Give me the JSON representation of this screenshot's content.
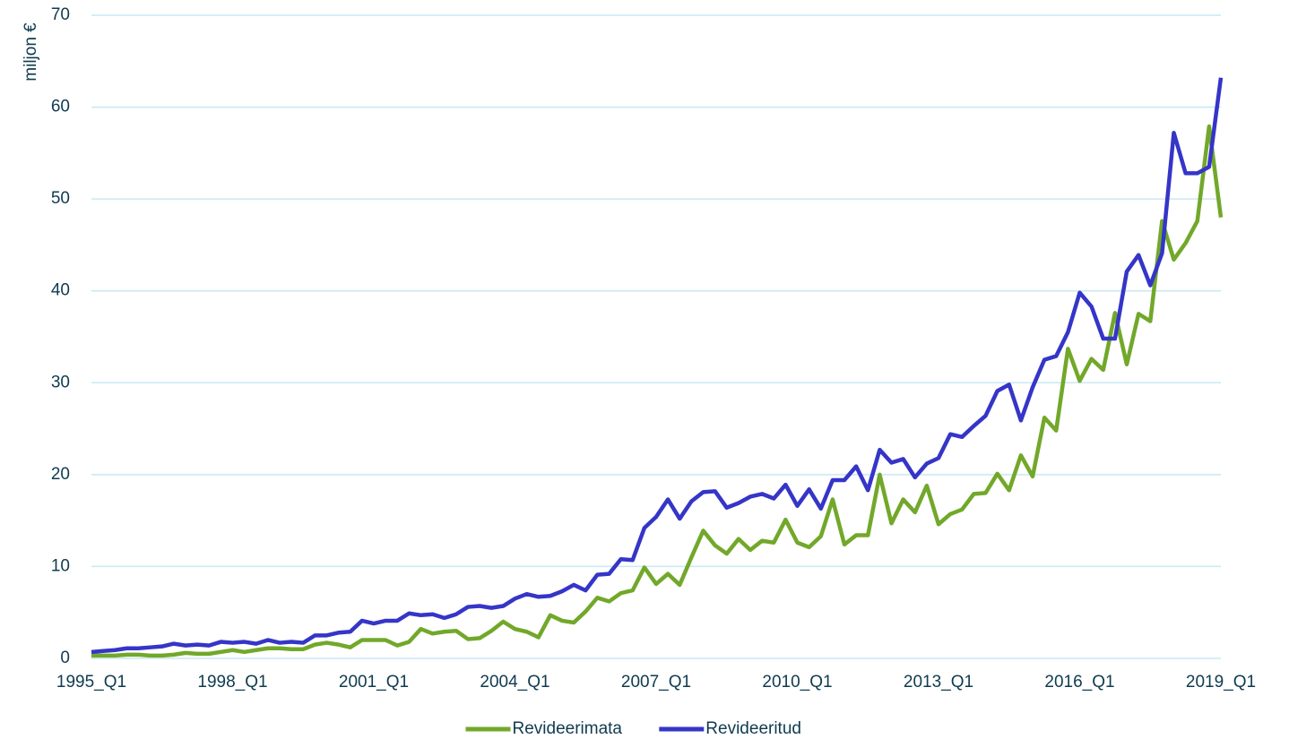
{
  "chart_data": {
    "type": "line",
    "y_label": "miljon €",
    "categories": [
      "1995_Q1",
      null,
      null,
      null,
      null,
      null,
      null,
      null,
      null,
      null,
      null,
      null,
      "1998_Q1",
      null,
      null,
      null,
      null,
      null,
      null,
      null,
      null,
      null,
      null,
      null,
      "2001_Q1",
      null,
      null,
      null,
      null,
      null,
      null,
      null,
      null,
      null,
      null,
      null,
      "2004_Q1",
      null,
      null,
      null,
      null,
      null,
      null,
      null,
      null,
      null,
      null,
      null,
      "2007_Q1",
      null,
      null,
      null,
      null,
      null,
      null,
      null,
      null,
      null,
      null,
      null,
      "2010_Q1",
      null,
      null,
      null,
      null,
      null,
      null,
      null,
      null,
      null,
      null,
      null,
      "2013_Q1",
      null,
      null,
      null,
      null,
      null,
      null,
      null,
      null,
      null,
      null,
      null,
      "2016_Q1",
      null,
      null,
      null,
      null,
      null,
      null,
      null,
      null,
      null,
      null,
      null,
      "2019_Q1"
    ],
    "series": [
      {
        "name": "Revideerimata",
        "color": "#72a82a",
        "values": [
          0.3,
          0.3,
          0.3,
          0.4,
          0.4,
          0.3,
          0.3,
          0.4,
          0.6,
          0.5,
          0.5,
          0.7,
          0.9,
          0.7,
          0.9,
          1.1,
          1.1,
          1.0,
          1.0,
          1.5,
          1.7,
          1.5,
          1.2,
          2.0,
          2.0,
          2.0,
          1.4,
          1.8,
          3.2,
          2.7,
          2.9,
          3.0,
          2.1,
          2.2,
          3.0,
          4.0,
          3.2,
          2.9,
          2.3,
          4.7,
          4.1,
          3.9,
          5.1,
          6.6,
          6.2,
          7.1,
          7.4,
          9.9,
          8.1,
          9.2,
          8.0,
          11.0,
          13.9,
          12.3,
          11.4,
          13.0,
          11.8,
          12.8,
          12.6,
          15.1,
          12.6,
          12.1,
          13.3,
          17.3,
          12.4,
          13.4,
          13.4,
          20.0,
          14.7,
          17.3,
          15.9,
          18.8,
          14.6,
          15.7,
          16.2,
          17.9,
          18.0,
          20.1,
          18.3,
          22.1,
          19.8,
          26.2,
          24.8,
          33.7,
          30.2,
          32.6,
          31.4,
          37.6,
          32.0,
          37.5,
          36.7,
          47.6,
          43.4,
          45.2,
          47.6,
          57.9,
          48.0
        ]
      },
      {
        "name": "Revideeritud",
        "color": "#3535c8",
        "values": [
          0.7,
          0.8,
          0.9,
          1.1,
          1.1,
          1.2,
          1.3,
          1.6,
          1.4,
          1.5,
          1.4,
          1.8,
          1.7,
          1.8,
          1.6,
          2.0,
          1.7,
          1.8,
          1.7,
          2.5,
          2.5,
          2.8,
          2.9,
          4.1,
          3.8,
          4.1,
          4.1,
          4.9,
          4.7,
          4.8,
          4.4,
          4.8,
          5.6,
          5.7,
          5.5,
          5.7,
          6.5,
          7.0,
          6.7,
          6.8,
          7.3,
          8.0,
          7.4,
          9.1,
          9.2,
          10.8,
          10.7,
          14.2,
          15.4,
          17.3,
          15.2,
          17.1,
          18.1,
          18.2,
          16.4,
          16.9,
          17.6,
          17.9,
          17.4,
          18.9,
          16.6,
          18.4,
          16.3,
          19.4,
          19.4,
          20.9,
          18.3,
          22.7,
          21.3,
          21.7,
          19.7,
          21.2,
          21.8,
          24.4,
          24.1,
          25.3,
          26.4,
          29.1,
          29.8,
          25.9,
          29.5,
          32.5,
          32.9,
          35.5,
          39.8,
          38.3,
          34.8,
          34.8,
          42.1,
          43.9,
          40.6,
          44.1,
          57.2,
          52.8,
          52.8,
          53.5,
          63.2
        ]
      }
    ],
    "ylim": [
      0,
      70
    ],
    "yticks": [
      0,
      10,
      20,
      30,
      40,
      50,
      60,
      70
    ],
    "grid": true,
    "legend": "bottom"
  }
}
